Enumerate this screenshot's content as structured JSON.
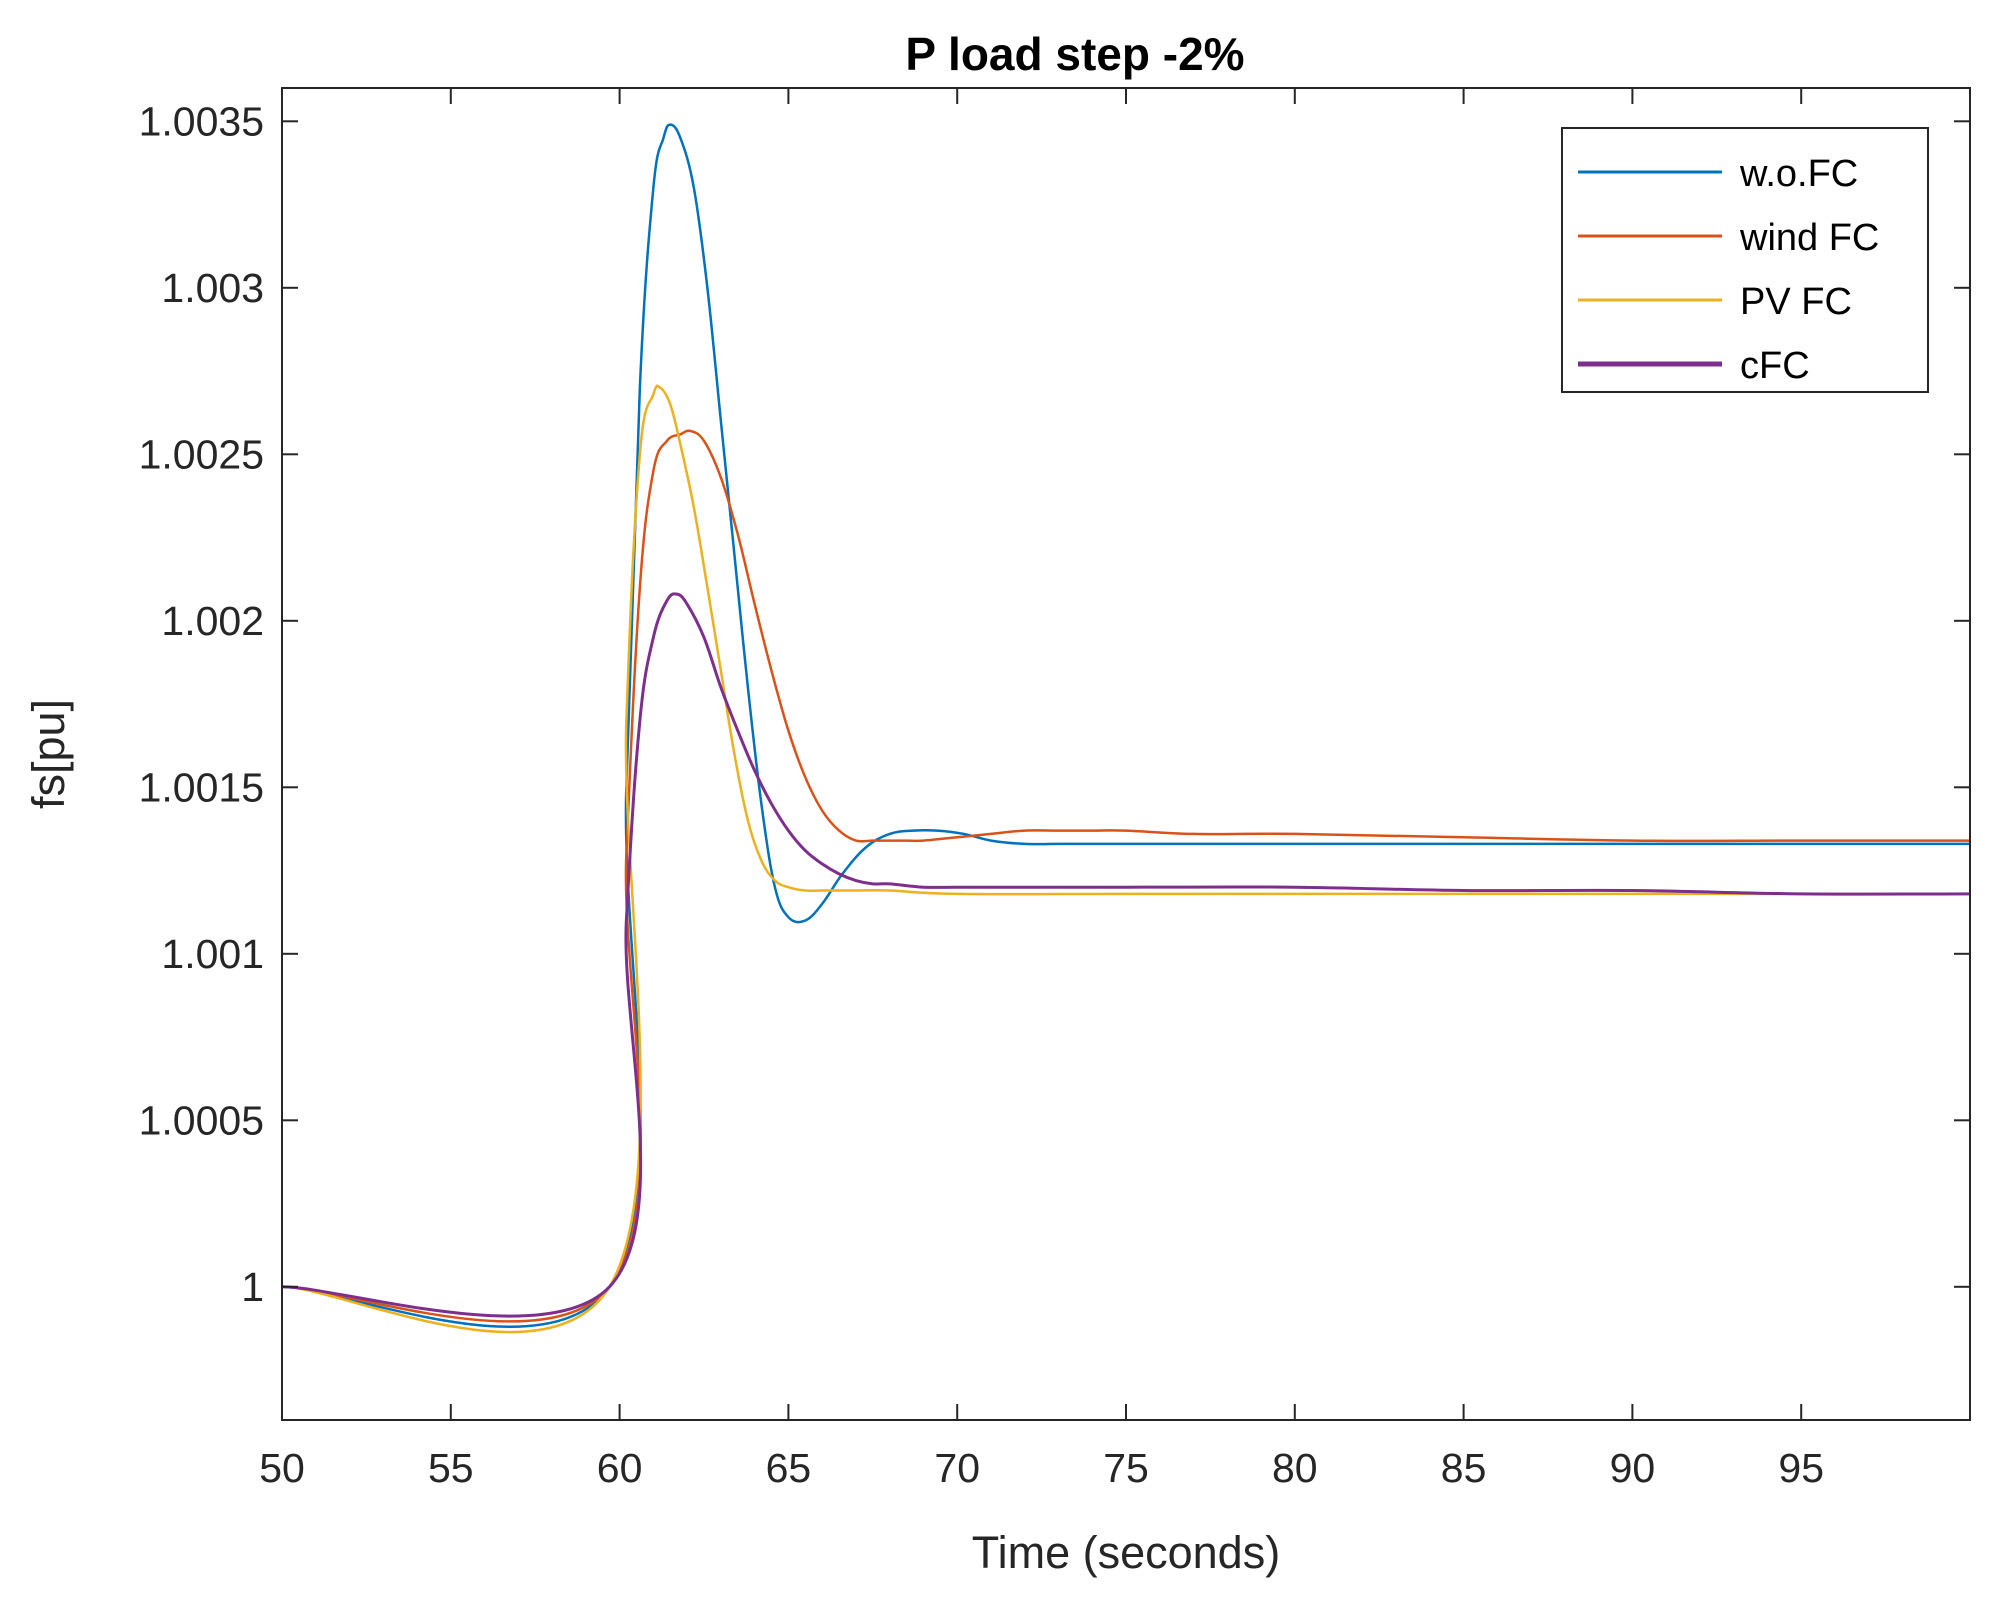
{
  "chart_data": {
    "type": "line",
    "title": "P load step -2%",
    "xlabel": "Time (seconds)",
    "ylabel": "fs[pu]",
    "xlim": [
      50,
      100
    ],
    "ylim": [
      0.9996,
      1.0036
    ],
    "x_ticks": [
      50,
      55,
      60,
      65,
      70,
      75,
      80,
      85,
      90,
      95
    ],
    "x_tick_labels": [
      "50",
      "55",
      "60",
      "65",
      "70",
      "75",
      "80",
      "85",
      "90",
      "95"
    ],
    "y_ticks": [
      1.0,
      1.0005,
      1.001,
      1.0015,
      1.002,
      1.0025,
      1.003,
      1.0035
    ],
    "y_tick_labels": [
      "1",
      "1.0005",
      "1.001",
      "1.0015",
      "1.002",
      "1.0025",
      "1.003",
      "1.0035"
    ],
    "grid": false,
    "legend_position": "top-right",
    "series": [
      {
        "name": "w.o.FC",
        "color": "#0072BD",
        "x": [
          50,
          59.7,
          60.2,
          60.6,
          61.0,
          61.3,
          61.5,
          61.8,
          62.2,
          62.6,
          63.0,
          63.4,
          63.8,
          64.2,
          64.6,
          65.0,
          65.5,
          66.0,
          66.6,
          67.3,
          68.0,
          68.7,
          69.4,
          70.2,
          71.0,
          72.0,
          73.0,
          74.5,
          76.0,
          80.0,
          85.0,
          90.0,
          95.0,
          100.0
        ],
        "y": [
          1.0,
          1.0,
          1.0015,
          1.0027,
          1.0033,
          1.00345,
          1.00349,
          1.00345,
          1.0033,
          1.003,
          1.0026,
          1.0022,
          1.0018,
          1.00145,
          1.0012,
          1.00111,
          1.0011,
          1.00115,
          1.00124,
          1.00132,
          1.00136,
          1.00137,
          1.00137,
          1.00136,
          1.00134,
          1.00133,
          1.00133,
          1.00133,
          1.00133,
          1.00133,
          1.00133,
          1.00133,
          1.00133,
          1.00133
        ]
      },
      {
        "name": "wind FC",
        "color": "#D95319",
        "x": [
          50,
          59.7,
          60.2,
          60.6,
          61.0,
          61.4,
          61.8,
          62.1,
          62.5,
          63.0,
          63.5,
          64.0,
          64.5,
          65.0,
          65.5,
          66.0,
          66.5,
          67.0,
          67.5,
          68.0,
          68.5,
          69.0,
          70.0,
          71.0,
          72.0,
          73.0,
          74.0,
          75.0,
          77.0,
          80.0,
          85.0,
          90.0,
          95.0,
          100.0
        ],
        "y": [
          1.0,
          1.0,
          1.0013,
          1.0021,
          1.00245,
          1.00254,
          1.00256,
          1.00257,
          1.00254,
          1.00243,
          1.00226,
          1.00205,
          1.00185,
          1.00167,
          1.00153,
          1.00143,
          1.00137,
          1.00134,
          1.00134,
          1.00134,
          1.00134,
          1.00134,
          1.00135,
          1.00136,
          1.00137,
          1.00137,
          1.00137,
          1.00137,
          1.00136,
          1.00136,
          1.00135,
          1.00134,
          1.00134,
          1.00134
        ]
      },
      {
        "name": "PV FC",
        "color": "#EDB120",
        "x": [
          50,
          59.7,
          60.2,
          60.6,
          61.0,
          61.2,
          61.5,
          61.8,
          62.2,
          62.6,
          63.0,
          63.4,
          63.8,
          64.2,
          64.6,
          65.0,
          65.5,
          66.0,
          66.5,
          67.0,
          68.0,
          70.0,
          75.0,
          80.0,
          85.0,
          90.0,
          95.0,
          100.0
        ],
        "y": [
          1.0,
          1.0,
          1.0017,
          1.0025,
          1.00268,
          1.0027,
          1.00265,
          1.00253,
          1.00234,
          1.0021,
          1.00185,
          1.0016,
          1.0014,
          1.00128,
          1.00122,
          1.0012,
          1.00119,
          1.00119,
          1.00119,
          1.00119,
          1.00119,
          1.00118,
          1.00118,
          1.00118,
          1.00118,
          1.00118,
          1.00118,
          1.00118
        ]
      },
      {
        "name": "cFC",
        "color": "#7E2F8E",
        "x": [
          50,
          59.7,
          60.2,
          60.6,
          61.0,
          61.4,
          61.7,
          62.0,
          62.5,
          63.0,
          63.5,
          64.0,
          64.5,
          65.0,
          65.5,
          66.0,
          66.5,
          67.0,
          67.5,
          68.0,
          69.0,
          70.0,
          72.0,
          75.0,
          80.0,
          85.0,
          90.0,
          95.0,
          100.0
        ],
        "y": [
          1.0,
          1.0,
          1.0011,
          1.0017,
          1.00195,
          1.00206,
          1.00208,
          1.00205,
          1.00195,
          1.0018,
          1.00167,
          1.00155,
          1.00145,
          1.00137,
          1.00131,
          1.00127,
          1.00124,
          1.00122,
          1.00121,
          1.00121,
          1.0012,
          1.0012,
          1.0012,
          1.0012,
          1.0012,
          1.00119,
          1.00119,
          1.00118,
          1.00118
        ]
      }
    ]
  }
}
